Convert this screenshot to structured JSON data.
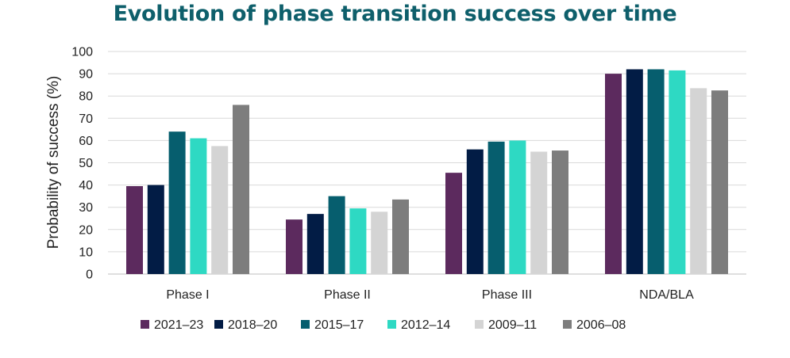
{
  "chart_data": {
    "type": "bar",
    "title": "Evolution of phase transition success over time",
    "ylabel": "Probability of success (%)",
    "xlabel": "",
    "ylim": [
      0,
      100
    ],
    "yticks": [
      0,
      10,
      20,
      30,
      40,
      50,
      60,
      70,
      80,
      90,
      100
    ],
    "grid": true,
    "legend_position": "bottom",
    "categories": [
      "Phase I",
      "Phase II",
      "Phase III",
      "NDA/BLA"
    ],
    "series": [
      {
        "name": "2021–23",
        "color": "#5c2a5e",
        "values": [
          39.5,
          24.5,
          45.5,
          90
        ]
      },
      {
        "name": "2018–20",
        "color": "#021c45",
        "values": [
          40,
          27,
          56,
          92
        ]
      },
      {
        "name": "2015–17",
        "color": "#065e6e",
        "values": [
          64,
          35,
          59.5,
          92
        ]
      },
      {
        "name": "2012–14",
        "color": "#2ed9c3",
        "values": [
          61,
          29.5,
          60,
          91.5
        ]
      },
      {
        "name": "2009–11",
        "color": "#d4d4d4",
        "values": [
          57.5,
          28,
          55,
          83.5
        ]
      },
      {
        "name": "2006–08",
        "color": "#7d7d7d",
        "values": [
          76,
          33.5,
          55.5,
          82.5
        ]
      }
    ]
  }
}
